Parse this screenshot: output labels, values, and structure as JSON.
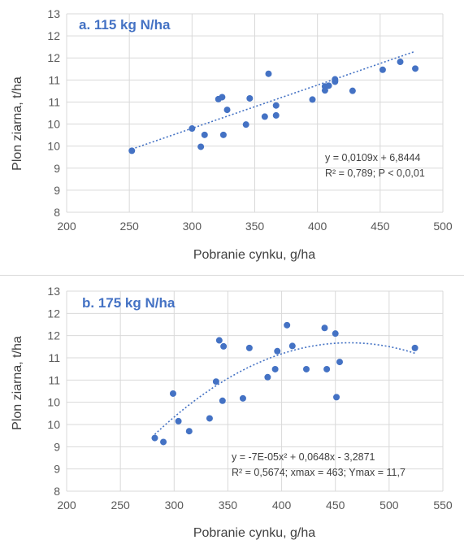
{
  "chart_data": [
    {
      "type": "scatter",
      "title": "a. 115 kg N/ha",
      "xlabel": "Pobranie cynku, g/ha",
      "ylabel": "Plon ziarna, t/ha",
      "xlim": [
        200,
        500
      ],
      "ylim": [
        8,
        13
      ],
      "xticks": [
        "200",
        "250",
        "300",
        "350",
        "400",
        "450",
        "500"
      ],
      "yticks": [
        "8",
        "9",
        "9",
        "10",
        "10",
        "11",
        "11",
        "12",
        "12",
        "13"
      ],
      "grid": true,
      "trendline": {
        "kind": "linear",
        "a": 0.0109,
        "b": 6.8444
      },
      "equation_lines": [
        "y = 0,0109x + 6,8444",
        "R² = 0,789; P < 0,0,01"
      ],
      "points": [
        [
          252,
          9.55
        ],
        [
          300,
          10.11
        ],
        [
          307,
          9.65
        ],
        [
          310,
          9.95
        ],
        [
          321,
          10.85
        ],
        [
          324,
          10.9
        ],
        [
          325,
          9.95
        ],
        [
          328,
          10.58
        ],
        [
          343,
          10.21
        ],
        [
          346,
          10.87
        ],
        [
          358,
          10.41
        ],
        [
          361,
          11.49
        ],
        [
          367,
          10.69
        ],
        [
          367,
          10.44
        ],
        [
          396,
          10.84
        ],
        [
          406,
          11.17
        ],
        [
          406,
          11.07
        ],
        [
          409,
          11.19
        ],
        [
          414,
          11.29
        ],
        [
          414,
          11.31
        ],
        [
          414,
          11.35
        ],
        [
          428,
          11.06
        ],
        [
          452,
          11.59
        ],
        [
          466,
          11.79
        ],
        [
          478,
          11.62
        ]
      ]
    },
    {
      "type": "scatter",
      "title": "b. 175 kg N/ha",
      "xlabel": "Pobranie cynku, g/ha",
      "ylabel": "Plon ziarna, t/ha",
      "xlim": [
        200,
        550
      ],
      "ylim": [
        8,
        13
      ],
      "xticks": [
        "200",
        "250",
        "300",
        "350",
        "400",
        "450",
        "500",
        "550"
      ],
      "yticks": [
        "8",
        "9",
        "9",
        "10",
        "10",
        "11",
        "11",
        "12",
        "12",
        "13"
      ],
      "grid": true,
      "trendline": {
        "kind": "quadratic",
        "a": -7e-05,
        "b": 0.0648,
        "c": -3.2871,
        "x_range": [
          282,
          524
        ]
      },
      "equation_lines": [
        "y = -7E-05x² + 0,0648x - 3,2871",
        "R² = 0,5674; xmax = 463; Ymax = 11,7"
      ],
      "points": [
        [
          282,
          9.33
        ],
        [
          290,
          9.23
        ],
        [
          299,
          10.44
        ],
        [
          304,
          9.75
        ],
        [
          314,
          9.5
        ],
        [
          333,
          9.82
        ],
        [
          339,
          10.74
        ],
        [
          342,
          11.77
        ],
        [
          345,
          10.26
        ],
        [
          346,
          11.62
        ],
        [
          364,
          10.32
        ],
        [
          370,
          11.58
        ],
        [
          387,
          10.85
        ],
        [
          394,
          11.05
        ],
        [
          396,
          11.5
        ],
        [
          405,
          12.15
        ],
        [
          410,
          11.63
        ],
        [
          423,
          11.05
        ],
        [
          440,
          12.08
        ],
        [
          442,
          11.05
        ],
        [
          450,
          11.94
        ],
        [
          451,
          10.35
        ],
        [
          454,
          11.23
        ],
        [
          524,
          11.58
        ]
      ]
    }
  ]
}
